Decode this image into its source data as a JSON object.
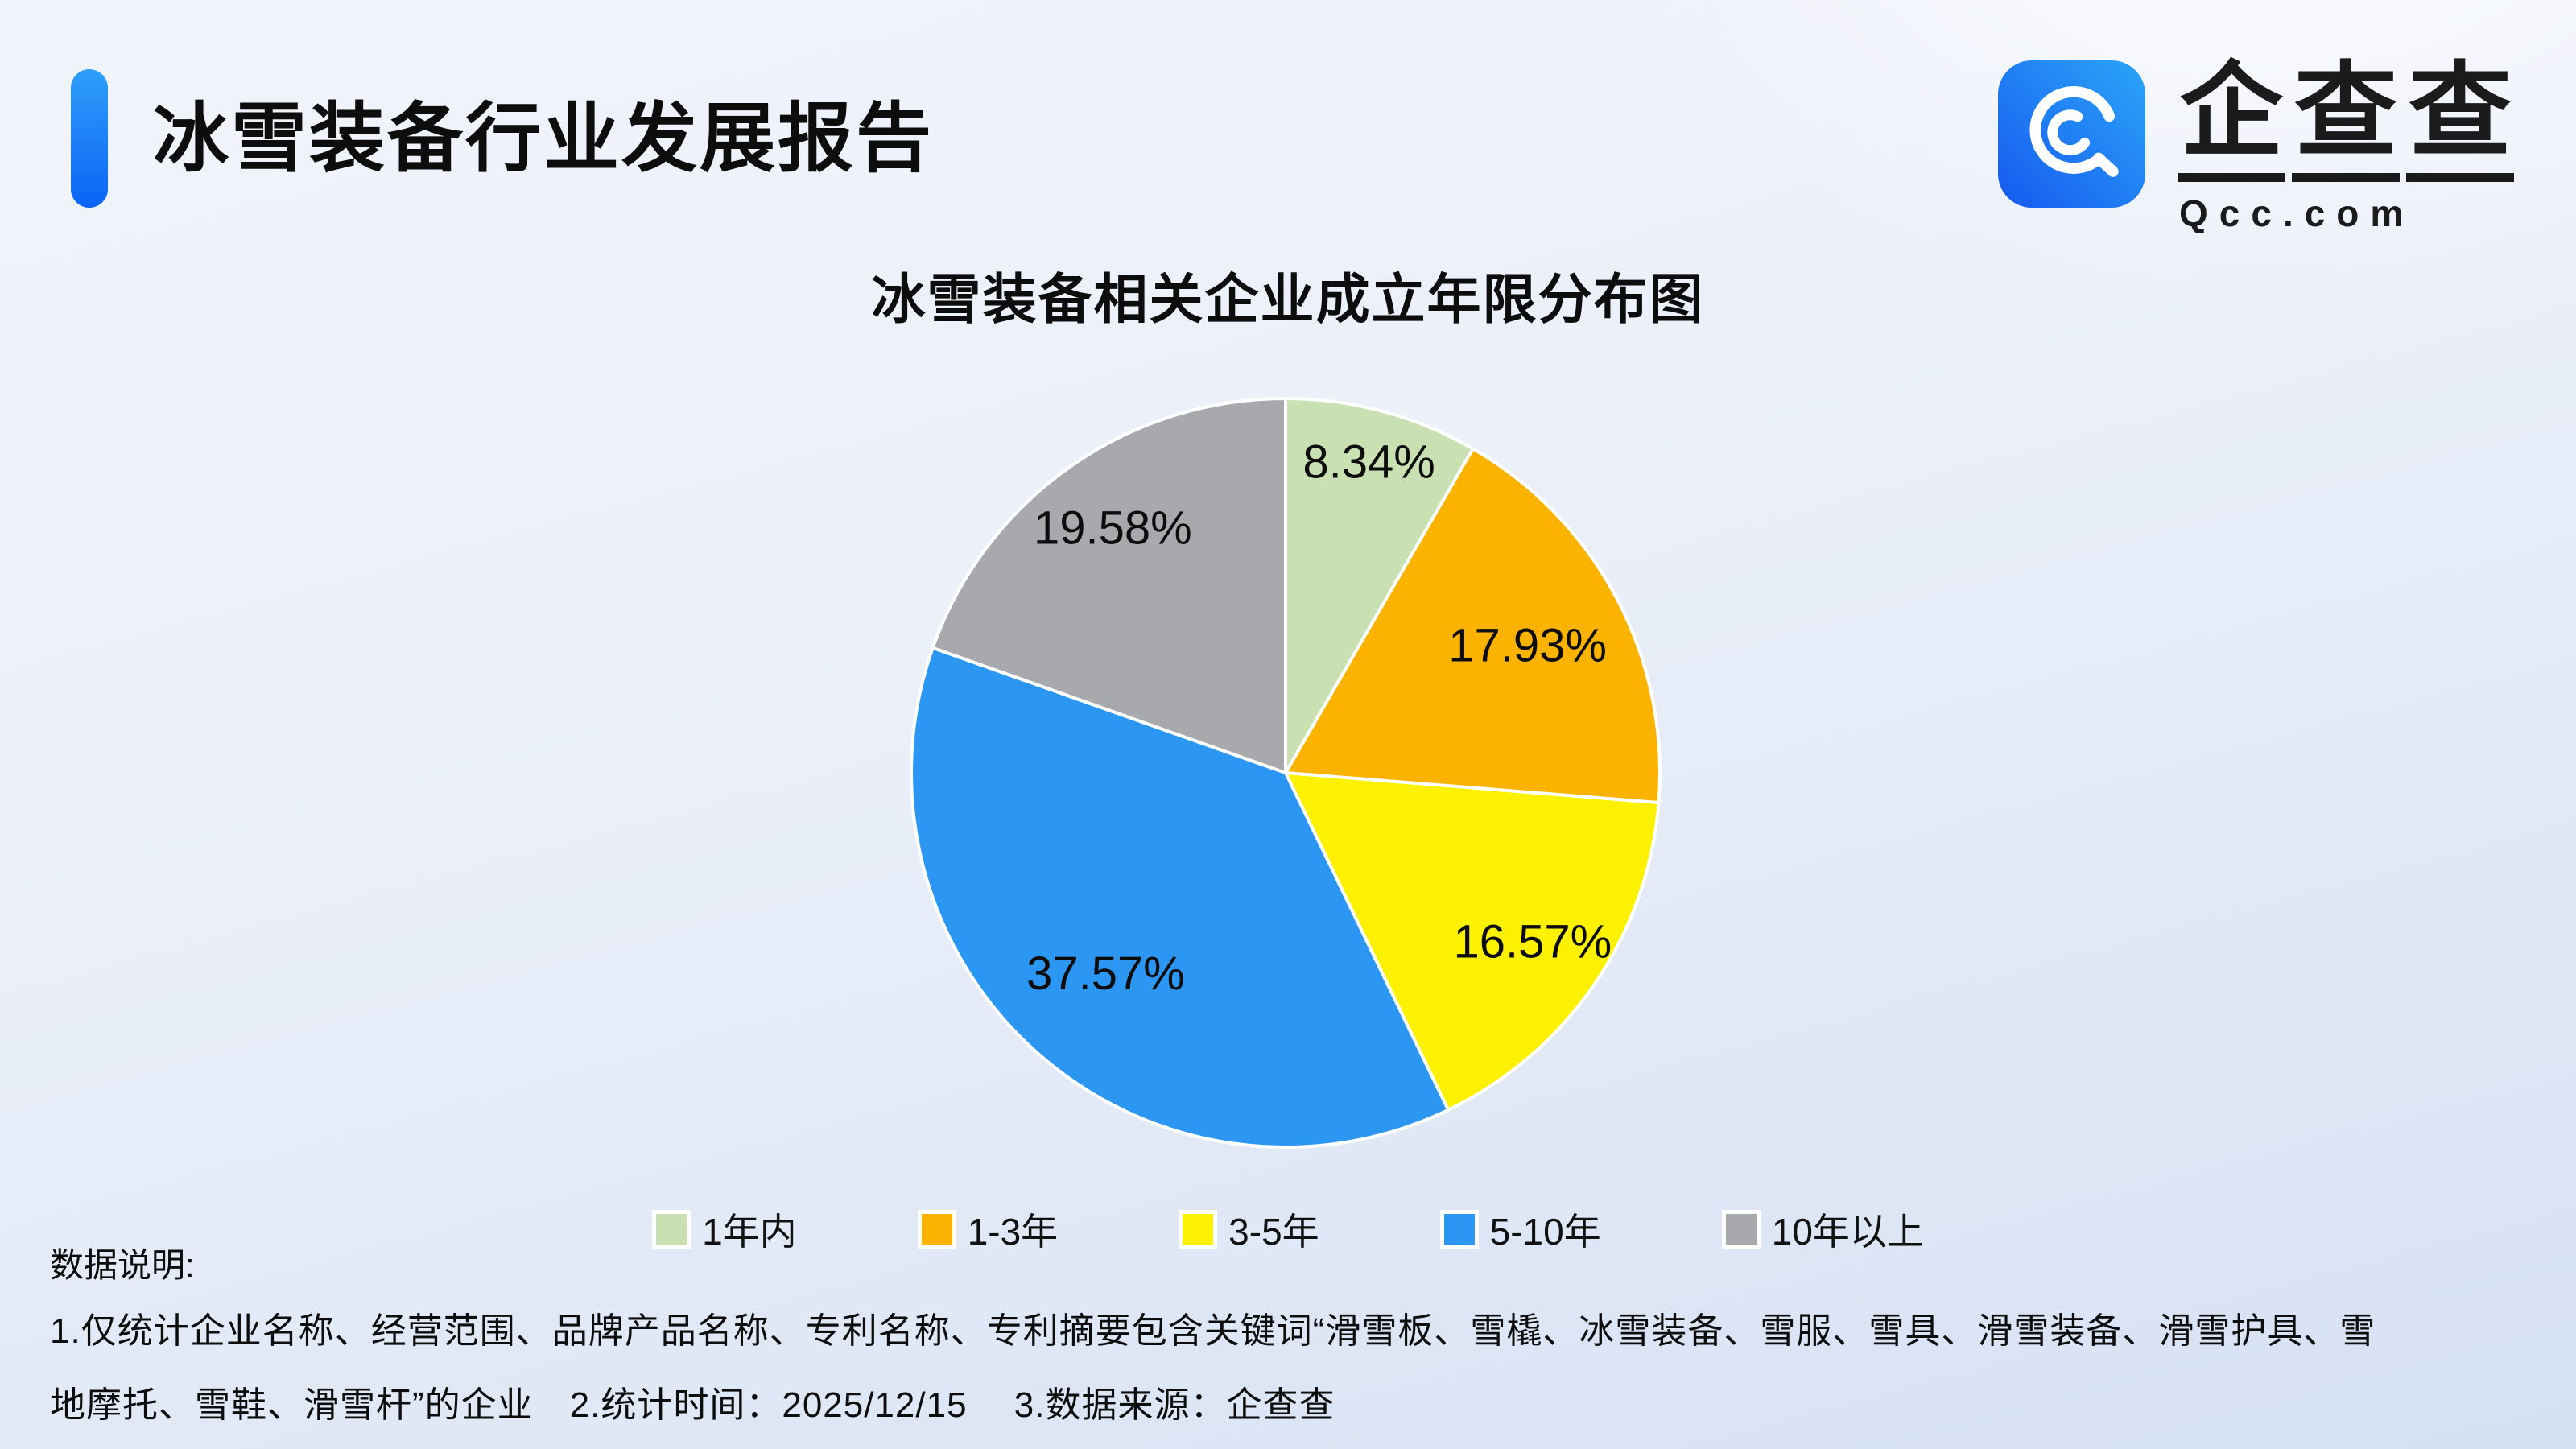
{
  "page": {
    "header": {
      "title": "冰雪装备行业发展报告",
      "accent_color": "#0d6efd"
    },
    "logo": {
      "brand_name": "企查查",
      "brand_domain": "Qcc.com",
      "icon": "qcc-magnifier-icon",
      "icon_gradient": [
        "#1659ef",
        "#2ba6f8"
      ]
    },
    "notes": {
      "label": "数据说明:",
      "lines": [
        "1.仅统计企业名称、经营范围、品牌产品名称、专利名称、专利摘要包含关键词“滑雪板、雪橇、冰雪装备、雪服、雪具、滑雪装备、滑雪护具、雪",
        "地摩托、雪鞋、滑雪杆”的企业　2.统计时间：2025/12/15　 3.数据来源：企查查"
      ]
    }
  },
  "chart_data": {
    "type": "pie",
    "title": "冰雪装备相关企业成立年限分布图",
    "categories": [
      "1年内",
      "1-3年",
      "3-5年",
      "5-10年",
      "10年以上"
    ],
    "values": [
      8.34,
      17.93,
      16.57,
      37.57,
      19.58
    ],
    "labels": [
      "8.34%",
      "17.93%",
      "16.57%",
      "37.57%",
      "19.58%"
    ],
    "unit": "%",
    "colors": [
      "#c9e0b2",
      "#fbb300",
      "#fbf100",
      "#2b97f3",
      "#a7a9ac"
    ],
    "start_angle_deg": 0,
    "direction": "clockwise",
    "slice_border_color": "#ffffff",
    "legend_position": "bottom",
    "label_color": "#0d0d0d"
  }
}
